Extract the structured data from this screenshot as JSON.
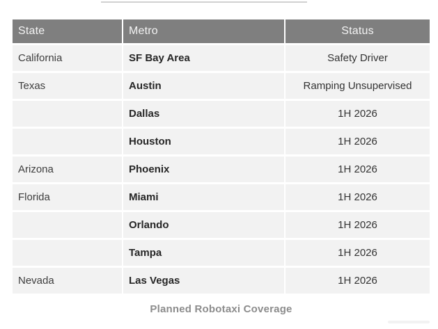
{
  "page": {
    "caption": "Planned Robotaxi Coverage"
  },
  "colors": {
    "header_bg": "#7f7f7f",
    "header_text": "#f4f4f4",
    "row_bg": "#f2f2f2",
    "body_text": "#3d3d3d",
    "metro_text": "#262626",
    "caption_text": "#8c8c8c",
    "divider": "#ffffff"
  },
  "table": {
    "columns": [
      "State",
      "Metro",
      "Status"
    ],
    "rows": [
      {
        "state": "California",
        "metro": "SF Bay Area",
        "status": "Safety Driver"
      },
      {
        "state": "Texas",
        "metro": "Austin",
        "status": "Ramping Unsupervised"
      },
      {
        "state": "",
        "metro": "Dallas",
        "status": "1H 2026"
      },
      {
        "state": "",
        "metro": "Houston",
        "status": "1H 2026"
      },
      {
        "state": "Arizona",
        "metro": "Phoenix",
        "status": "1H 2026"
      },
      {
        "state": "Florida",
        "metro": "Miami",
        "status": "1H 2026"
      },
      {
        "state": "",
        "metro": "Orlando",
        "status": "1H 2026"
      },
      {
        "state": "",
        "metro": "Tampa",
        "status": "1H 2026"
      },
      {
        "state": "Nevada",
        "metro": "Las Vegas",
        "status": "1H 2026"
      }
    ]
  },
  "chart_data": {
    "type": "table",
    "title": "Planned Robotaxi Coverage",
    "columns": [
      "State",
      "Metro",
      "Status"
    ],
    "rows": [
      [
        "California",
        "SF Bay Area",
        "Safety Driver"
      ],
      [
        "Texas",
        "Austin",
        "Ramping Unsupervised"
      ],
      [
        "",
        "Dallas",
        "1H 2026"
      ],
      [
        "",
        "Houston",
        "1H 2026"
      ],
      [
        "Arizona",
        "Phoenix",
        "1H 2026"
      ],
      [
        "Florida",
        "Miami",
        "1H 2026"
      ],
      [
        "",
        "Orlando",
        "1H 2026"
      ],
      [
        "",
        "Tampa",
        "1H 2026"
      ],
      [
        "Nevada",
        "Las Vegas",
        "1H 2026"
      ]
    ],
    "layout": {
      "header_align": [
        "left",
        "left",
        "center"
      ],
      "body_align": [
        "left",
        "left",
        "center"
      ],
      "metro_column_bold": true,
      "banded_rows": true
    }
  }
}
